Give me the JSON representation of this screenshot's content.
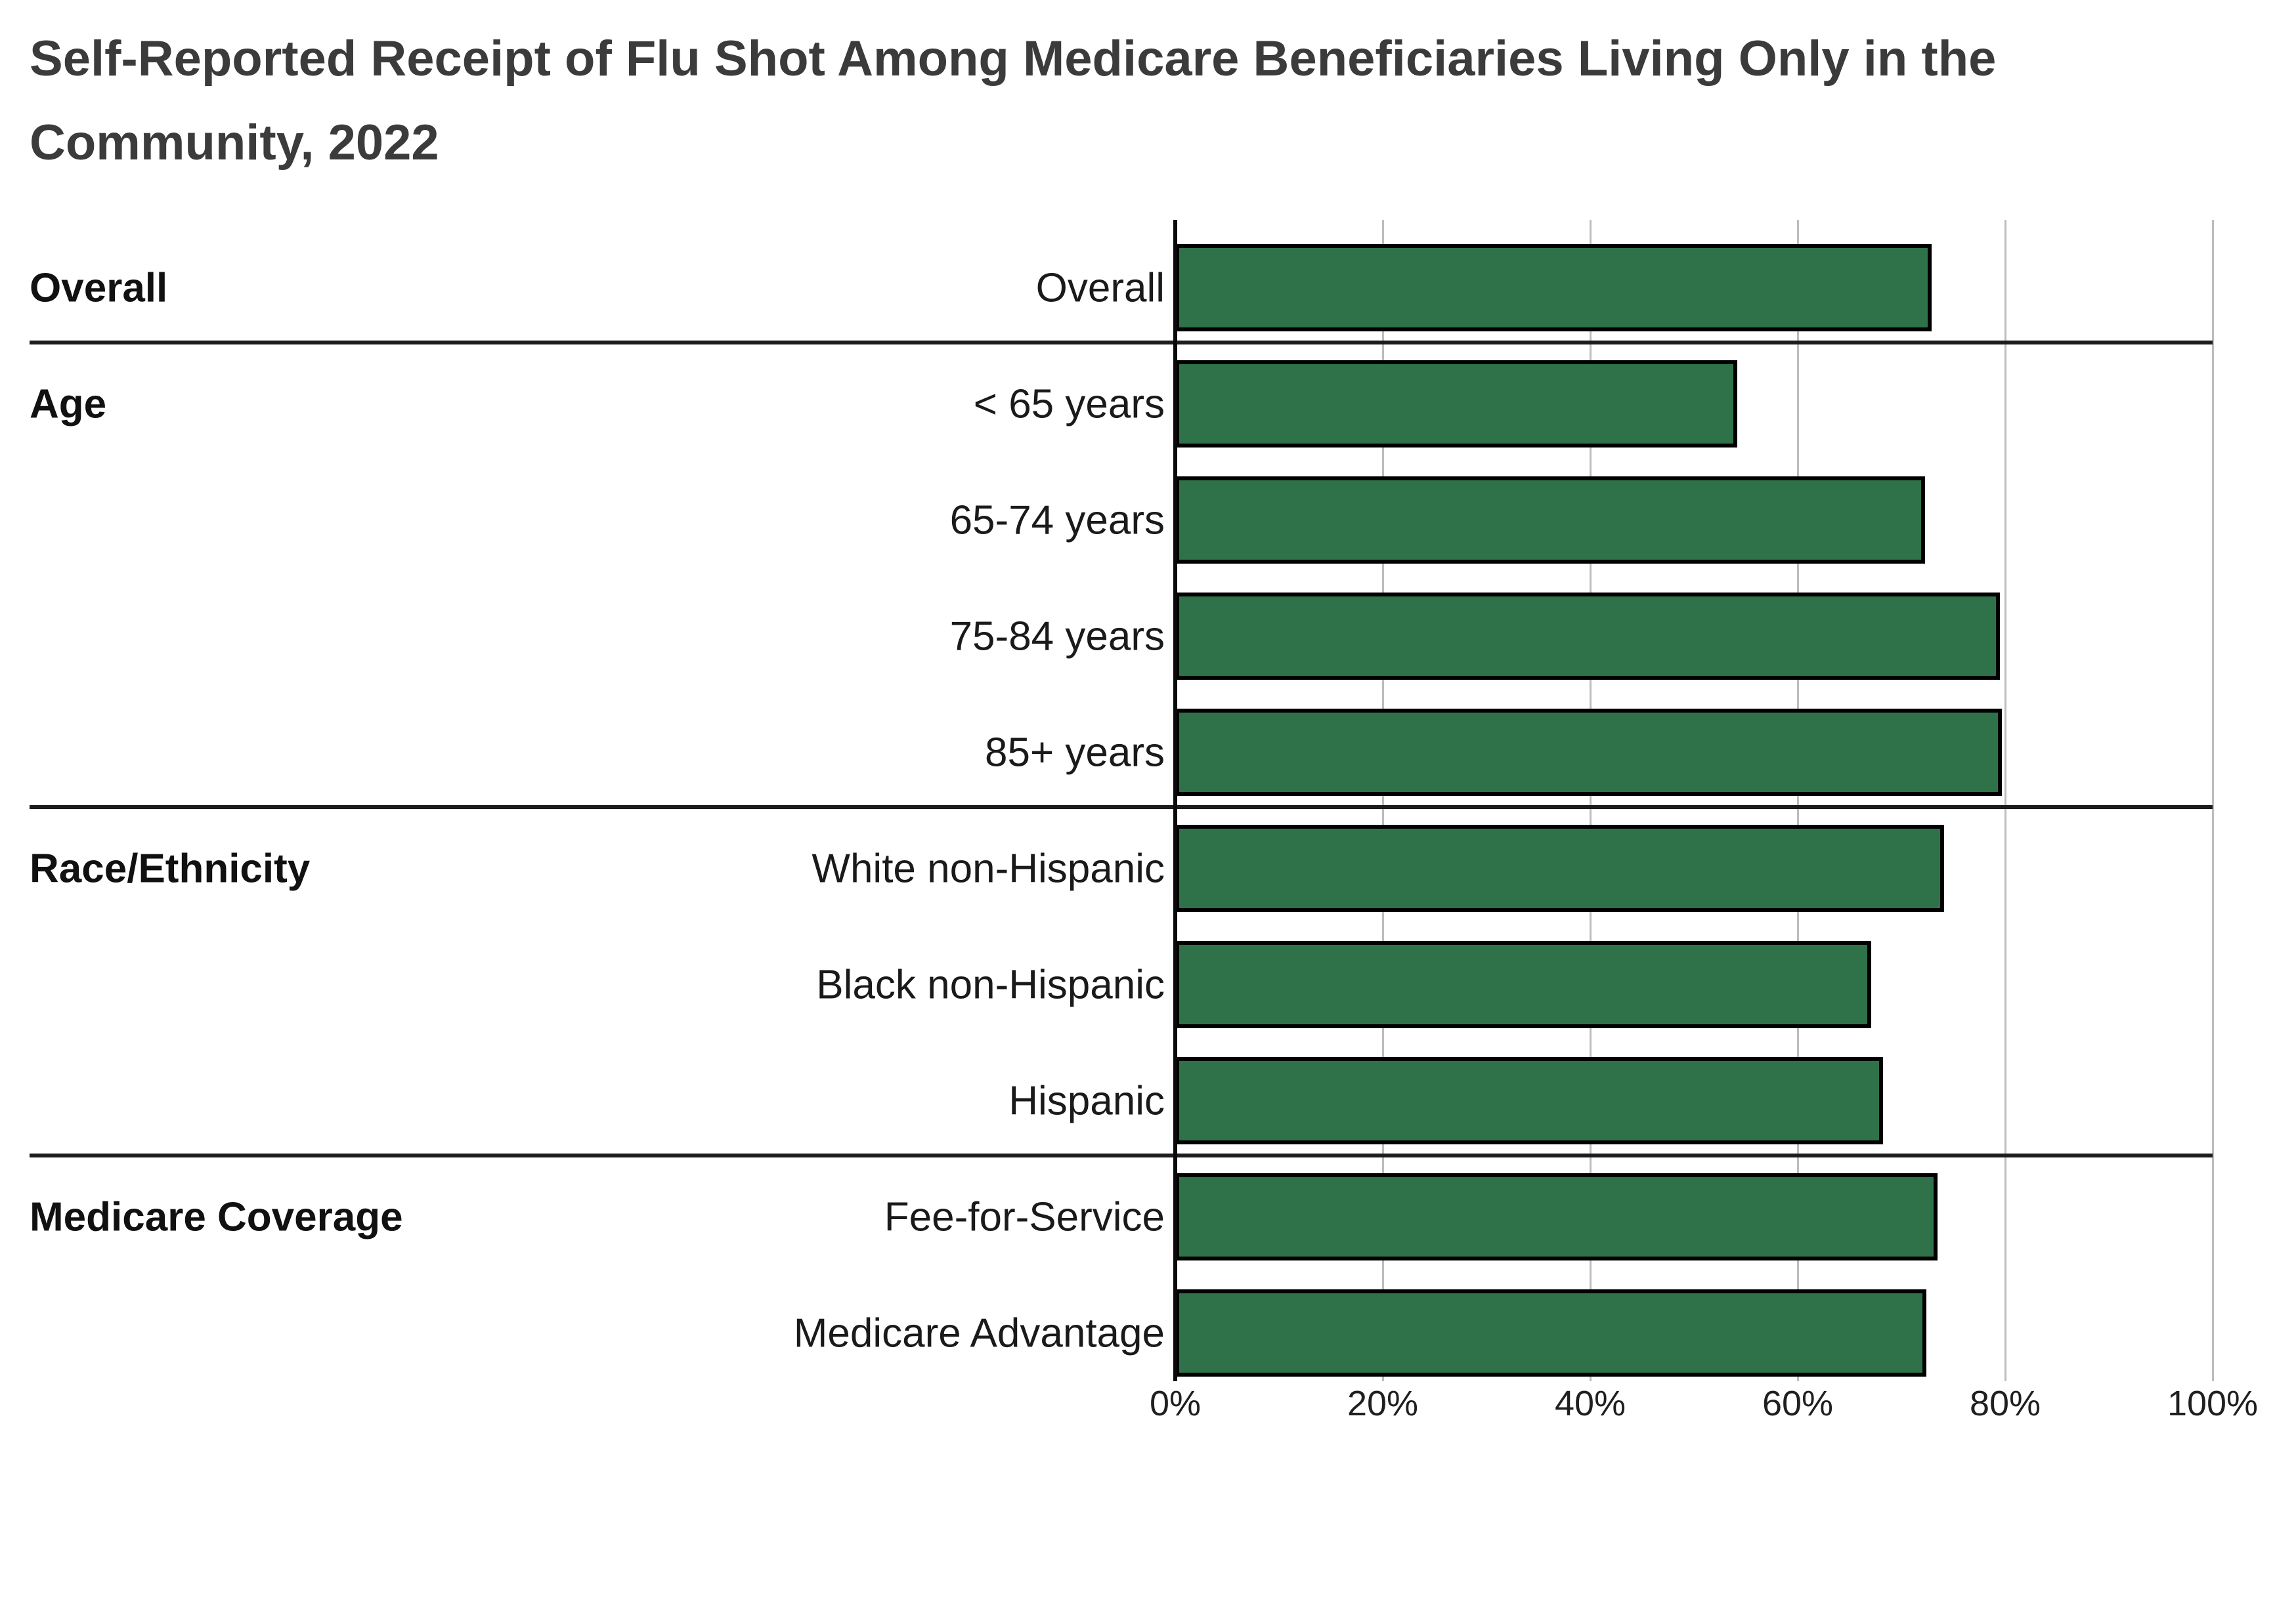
{
  "page": {
    "background": "#FFFFFF"
  },
  "colors": {
    "bar_fill": "#2F7249",
    "bar_border": "#000000",
    "title_text": "#3B3B3B",
    "label_text": "#1A1A1A",
    "tick_label_text": "#1F1F1F",
    "gridline": "#BDBDBD",
    "axis_line": "#0A0A0A",
    "separator_line": "#1C1C1C"
  },
  "chart_data": {
    "type": "bar",
    "orientation": "horizontal",
    "title": "Self-Reported Receipt of Flu Shot Among Medicare Beneficiaries Living Only in the Community, 2022",
    "unit": "percent",
    "xlabel": "",
    "ylabel": "",
    "xlim": [
      0,
      100
    ],
    "grid": "vertical gridlines at 20% intervals",
    "legend": "none",
    "x_ticks": [
      {
        "label": "0%",
        "value": 0
      },
      {
        "label": "20%",
        "value": 20
      },
      {
        "label": "40%",
        "value": 40
      },
      {
        "label": "60%",
        "value": 60
      },
      {
        "label": "80%",
        "value": 80
      },
      {
        "label": "100%",
        "value": 100
      }
    ],
    "groups": [
      {
        "group": "Overall",
        "rows": [
          {
            "label": "Overall",
            "value": 72.9
          }
        ]
      },
      {
        "group": "Age",
        "rows": [
          {
            "label": "< 65 years",
            "value": 54.2
          },
          {
            "label": "65-74 years",
            "value": 72.3
          },
          {
            "label": "75-84 years",
            "value": 79.5
          },
          {
            "label": "85+ years",
            "value": 79.7
          }
        ]
      },
      {
        "group": "Race/Ethnicity",
        "rows": [
          {
            "label": "White non-Hispanic",
            "value": 74.1
          },
          {
            "label": "Black non-Hispanic",
            "value": 67.1
          },
          {
            "label": "Hispanic",
            "value": 68.2
          }
        ]
      },
      {
        "group": "Medicare Coverage",
        "rows": [
          {
            "label": "Fee-for-Service",
            "value": 73.5
          },
          {
            "label": "Medicare Advantage",
            "value": 72.4
          }
        ]
      }
    ]
  }
}
